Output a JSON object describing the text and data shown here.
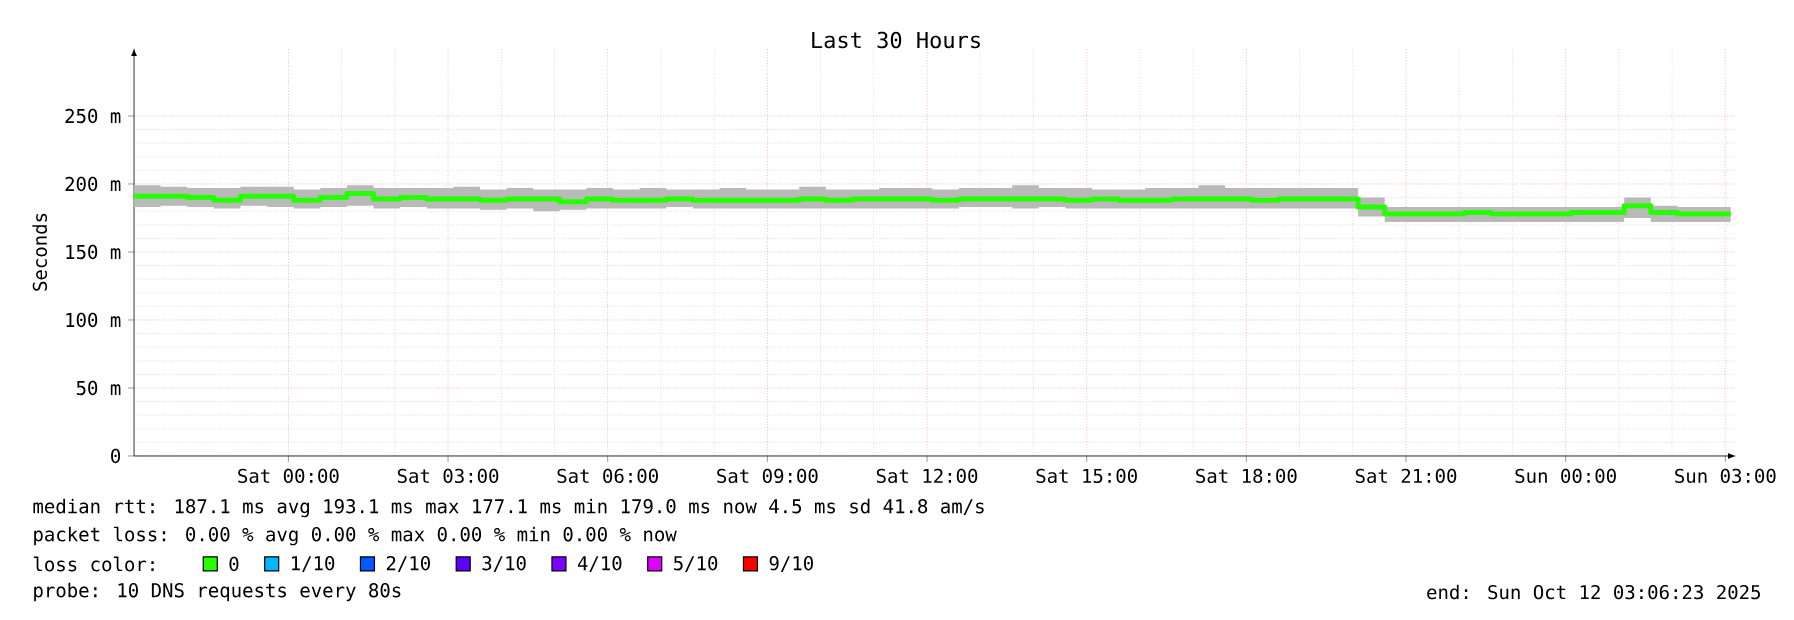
{
  "chart_data": {
    "type": "step",
    "title": "Last 30 Hours",
    "ylabel": "Seconds",
    "legend_title": "loss color:",
    "x": [
      "2025-10-10T21:06",
      "2025-10-10T21:36",
      "2025-10-10T22:06",
      "2025-10-10T22:36",
      "2025-10-10T23:06",
      "2025-10-10T23:36",
      "2025-10-11T00:06",
      "2025-10-11T00:36",
      "2025-10-11T01:06",
      "2025-10-11T01:36",
      "2025-10-11T02:06",
      "2025-10-11T02:36",
      "2025-10-11T03:06",
      "2025-10-11T03:36",
      "2025-10-11T04:06",
      "2025-10-11T04:36",
      "2025-10-11T05:06",
      "2025-10-11T05:36",
      "2025-10-11T06:06",
      "2025-10-11T06:36",
      "2025-10-11T07:06",
      "2025-10-11T07:36",
      "2025-10-11T08:06",
      "2025-10-11T08:36",
      "2025-10-11T09:06",
      "2025-10-11T09:36",
      "2025-10-11T10:06",
      "2025-10-11T10:36",
      "2025-10-11T11:06",
      "2025-10-11T11:36",
      "2025-10-11T12:06",
      "2025-10-11T12:36",
      "2025-10-11T13:06",
      "2025-10-11T13:36",
      "2025-10-11T14:06",
      "2025-10-11T14:36",
      "2025-10-11T15:06",
      "2025-10-11T15:36",
      "2025-10-11T16:06",
      "2025-10-11T16:36",
      "2025-10-11T17:06",
      "2025-10-11T17:36",
      "2025-10-11T18:06",
      "2025-10-11T18:36",
      "2025-10-11T19:06",
      "2025-10-11T19:36",
      "2025-10-11T20:06",
      "2025-10-11T20:36",
      "2025-10-11T21:06",
      "2025-10-11T21:36",
      "2025-10-11T22:06",
      "2025-10-11T22:36",
      "2025-10-11T23:06",
      "2025-10-11T23:36",
      "2025-10-12T00:06",
      "2025-10-12T00:36",
      "2025-10-12T01:06",
      "2025-10-12T01:36",
      "2025-10-12T02:06",
      "2025-10-12T02:36",
      "2025-10-12T03:06"
    ],
    "series": [
      {
        "name": "0",
        "color": "#26ff00",
        "values": [
          191,
          191,
          190,
          188,
          191,
          191,
          188,
          190,
          193,
          189,
          190,
          189,
          189,
          188,
          189,
          189,
          187,
          189,
          188,
          188,
          189,
          188,
          188,
          188,
          188,
          189,
          188,
          189,
          189,
          189,
          188,
          189,
          189,
          189,
          189,
          188,
          189,
          188,
          188,
          189,
          189,
          189,
          188,
          189,
          189,
          189,
          183,
          178,
          178,
          178,
          179,
          178,
          178,
          178,
          179,
          179,
          184,
          179,
          178,
          178,
          178
        ],
        "lower": [
          183,
          184,
          183,
          182,
          184,
          183,
          182,
          183,
          184,
          182,
          183,
          182,
          182,
          181,
          182,
          180,
          181,
          182,
          182,
          182,
          183,
          182,
          182,
          182,
          182,
          182,
          182,
          182,
          182,
          182,
          182,
          183,
          183,
          182,
          183,
          182,
          182,
          182,
          182,
          182,
          182,
          182,
          182,
          182,
          182,
          182,
          176,
          172,
          172,
          172,
          172,
          172,
          172,
          172,
          172,
          172,
          175,
          172,
          172,
          172,
          172
        ],
        "upper": [
          199,
          198,
          197,
          197,
          198,
          198,
          196,
          197,
          199,
          197,
          197,
          197,
          198,
          196,
          197,
          196,
          196,
          197,
          196,
          197,
          196,
          196,
          197,
          196,
          196,
          198,
          196,
          196,
          197,
          197,
          196,
          197,
          197,
          199,
          197,
          197,
          196,
          196,
          197,
          197,
          199,
          197,
          197,
          197,
          197,
          197,
          190,
          183,
          183,
          183,
          183,
          183,
          183,
          183,
          183,
          183,
          190,
          184,
          183,
          183,
          183
        ]
      },
      {
        "name": "1/10",
        "color": "#00b8ff",
        "values": [
          null,
          null,
          null,
          null,
          null,
          null,
          null,
          null,
          null,
          null,
          null,
          null,
          null,
          null,
          null,
          null,
          null,
          null,
          null,
          null,
          null,
          null,
          null,
          null,
          null,
          null,
          null,
          null,
          null,
          null,
          null,
          null,
          null,
          null,
          null,
          null,
          null,
          null,
          null,
          null,
          null,
          null,
          null,
          null,
          null,
          null,
          null,
          null,
          null,
          null,
          null,
          null,
          null,
          null,
          null,
          null,
          null,
          null,
          null,
          null,
          null
        ]
      },
      {
        "name": "2/10",
        "color": "#0059ff",
        "values": [
          null,
          null,
          null,
          null,
          null,
          null,
          null,
          null,
          null,
          null,
          null,
          null,
          null,
          null,
          null,
          null,
          null,
          null,
          null,
          null,
          null,
          null,
          null,
          null,
          null,
          null,
          null,
          null,
          null,
          null,
          null,
          null,
          null,
          null,
          null,
          null,
          null,
          null,
          null,
          null,
          null,
          null,
          null,
          null,
          null,
          null,
          null,
          null,
          null,
          null,
          null,
          null,
          null,
          null,
          null,
          null,
          null,
          null,
          null,
          null,
          null
        ]
      },
      {
        "name": "3/10",
        "color": "#5e00ff",
        "values": [
          null,
          null,
          null,
          null,
          null,
          null,
          null,
          null,
          null,
          null,
          null,
          null,
          null,
          null,
          null,
          null,
          null,
          null,
          null,
          null,
          null,
          null,
          null,
          null,
          null,
          null,
          null,
          null,
          null,
          null,
          null,
          null,
          null,
          null,
          null,
          null,
          null,
          null,
          null,
          null,
          null,
          null,
          null,
          null,
          null,
          null,
          null,
          null,
          null,
          null,
          null,
          null,
          null,
          null,
          null,
          null,
          null,
          null,
          null,
          null,
          null
        ]
      },
      {
        "name": "4/10",
        "color": "#7e00ff",
        "values": [
          null,
          null,
          null,
          null,
          null,
          null,
          null,
          null,
          null,
          null,
          null,
          null,
          null,
          null,
          null,
          null,
          null,
          null,
          null,
          null,
          null,
          null,
          null,
          null,
          null,
          null,
          null,
          null,
          null,
          null,
          null,
          null,
          null,
          null,
          null,
          null,
          null,
          null,
          null,
          null,
          null,
          null,
          null,
          null,
          null,
          null,
          null,
          null,
          null,
          null,
          null,
          null,
          null,
          null,
          null,
          null,
          null,
          null,
          null,
          null,
          null
        ]
      },
      {
        "name": "5/10",
        "color": "#dd00ff",
        "values": [
          null,
          null,
          null,
          null,
          null,
          null,
          null,
          null,
          null,
          null,
          null,
          null,
          null,
          null,
          null,
          null,
          null,
          null,
          null,
          null,
          null,
          null,
          null,
          null,
          null,
          null,
          null,
          null,
          null,
          null,
          null,
          null,
          null,
          null,
          null,
          null,
          null,
          null,
          null,
          null,
          null,
          null,
          null,
          null,
          null,
          null,
          null,
          null,
          null,
          null,
          null,
          null,
          null,
          null,
          null,
          null,
          null,
          null,
          null,
          null,
          null
        ]
      },
      {
        "name": "9/10",
        "color": "#ff0000",
        "values": [
          null,
          null,
          null,
          null,
          null,
          null,
          null,
          null,
          null,
          null,
          null,
          null,
          null,
          null,
          null,
          null,
          null,
          null,
          null,
          null,
          null,
          null,
          null,
          null,
          null,
          null,
          null,
          null,
          null,
          null,
          null,
          null,
          null,
          null,
          null,
          null,
          null,
          null,
          null,
          null,
          null,
          null,
          null,
          null,
          null,
          null,
          null,
          null,
          null,
          null,
          null,
          null,
          null,
          null,
          null,
          null,
          null,
          null,
          null,
          null,
          null
        ]
      }
    ],
    "xlim": [
      "2025-10-10T21:06",
      "2025-10-12T03:12"
    ],
    "xticks": [
      {
        "value": "2025-10-11T00:00",
        "label": "Sat 00:00"
      },
      {
        "value": "2025-10-11T03:00",
        "label": "Sat 03:00"
      },
      {
        "value": "2025-10-11T06:00",
        "label": "Sat 06:00"
      },
      {
        "value": "2025-10-11T09:00",
        "label": "Sat 09:00"
      },
      {
        "value": "2025-10-11T12:00",
        "label": "Sat 12:00"
      },
      {
        "value": "2025-10-11T15:00",
        "label": "Sat 15:00"
      },
      {
        "value": "2025-10-11T18:00",
        "label": "Sat 18:00"
      },
      {
        "value": "2025-10-11T21:00",
        "label": "Sat 21:00"
      },
      {
        "value": "2025-10-12T00:00",
        "label": "Sun 00:00"
      },
      {
        "value": "2025-10-12T03:00",
        "label": "Sun 03:00"
      }
    ],
    "ylim": [
      0,
      300
    ],
    "yticks": [
      {
        "value": 0,
        "label": "0"
      },
      {
        "value": 50,
        "label": "50 m"
      },
      {
        "value": 100,
        "label": "100 m"
      },
      {
        "value": 150,
        "label": "150 m"
      },
      {
        "value": 200,
        "label": "200 m"
      },
      {
        "value": 250,
        "label": "250 m"
      }
    ],
    "grid": true,
    "legend": "bottom",
    "line_style": "solid",
    "marker": "none",
    "annotations": [
      "median rtt: 187.1 ms avg 193.1 ms max 177.1 ms min 179.0 ms now 4.5 ms sd 41.8 am/s",
      "packet loss: 0.00 % avg 0.00 % max 0.00 % min 0.00 % now",
      "probe: 10 DNS requests every 80s",
      "end: Sun Oct 12 03:06:23 2025"
    ]
  }
}
